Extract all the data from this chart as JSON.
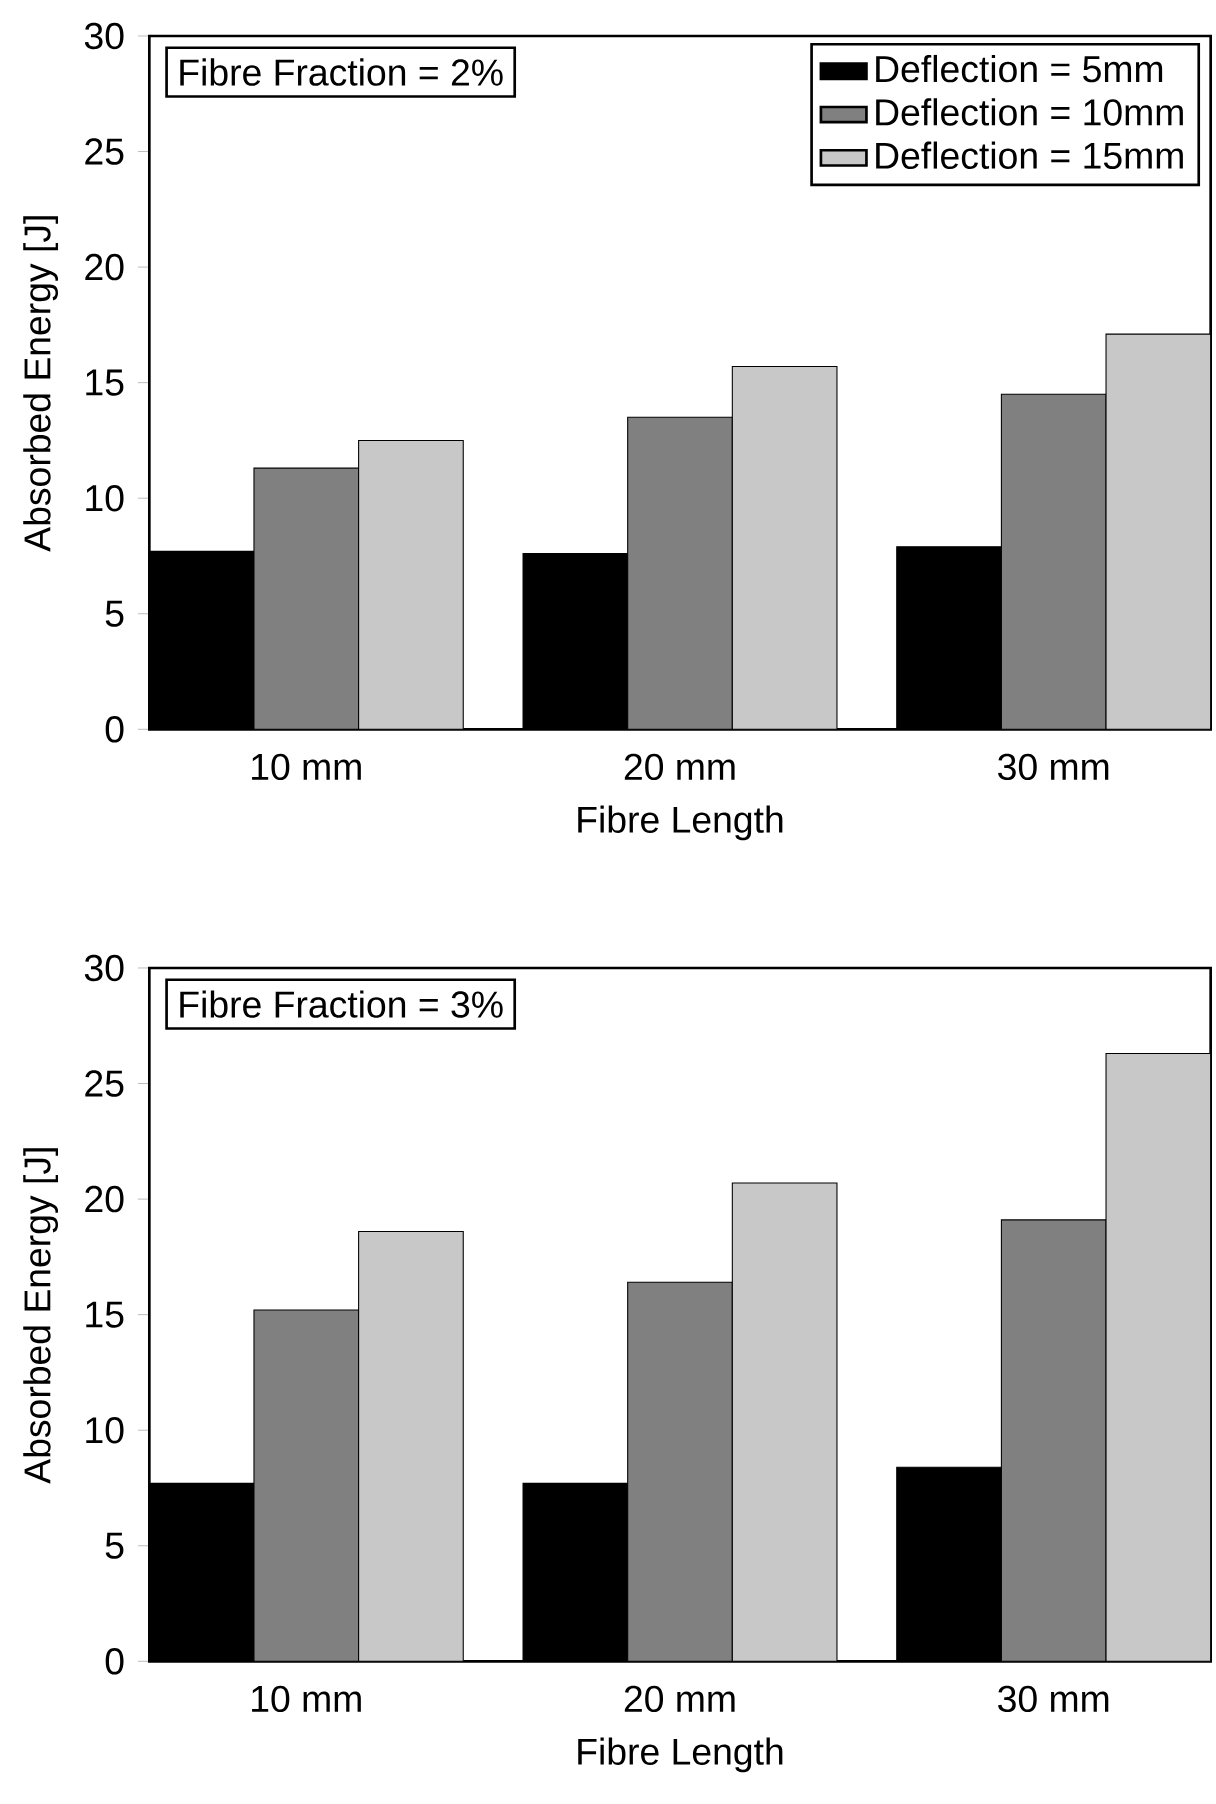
{
  "chart_data": [
    {
      "type": "bar",
      "categories": [
        "10 mm",
        "20 mm",
        "30 mm"
      ],
      "xlabel": "Fibre Length",
      "ylabel": "Absorbed Energy [J]",
      "ylim": [
        0,
        30
      ],
      "yticks": [
        0,
        5,
        10,
        15,
        20,
        25,
        30
      ],
      "legend": "top right",
      "annotations": [
        "Fibre Fraction = 2%"
      ],
      "series": [
        {
          "name": "Deflection = 5mm",
          "color": "#000000",
          "values": [
            7.7,
            7.6,
            7.9
          ]
        },
        {
          "name": "Deflection = 10mm",
          "color": "#808080",
          "values": [
            11.3,
            13.5,
            14.5
          ]
        },
        {
          "name": "Deflection = 15mm",
          "color": "#c8c8c8",
          "values": [
            12.5,
            15.7,
            17.1
          ]
        }
      ]
    },
    {
      "type": "bar",
      "categories": [
        "10 mm",
        "20 mm",
        "30 mm"
      ],
      "xlabel": "Fibre Length",
      "ylabel": "Absorbed Energy [J]",
      "ylim": [
        0,
        30
      ],
      "yticks": [
        0,
        5,
        10,
        15,
        20,
        25,
        30
      ],
      "annotations": [
        "Fibre Fraction = 3%"
      ],
      "series": [
        {
          "color": "#000000",
          "values": [
            7.7,
            7.7,
            8.4
          ]
        },
        {
          "color": "#808080",
          "values": [
            15.2,
            16.4,
            19.1
          ]
        },
        {
          "color": "#c8c8c8",
          "values": [
            18.6,
            20.7,
            26.3
          ]
        }
      ]
    }
  ]
}
